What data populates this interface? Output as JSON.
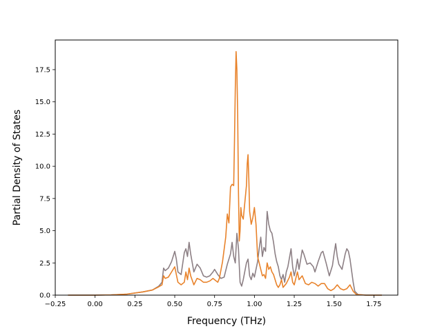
{
  "chart_data": {
    "type": "line",
    "title": "",
    "xlabel": "Frequency (THz)",
    "ylabel": "Partial Density of States",
    "xlim": [
      -0.25,
      1.9
    ],
    "ylim": [
      0,
      19.8
    ],
    "xticks": [
      -0.25,
      0.0,
      0.25,
      0.5,
      0.75,
      1.0,
      1.25,
      1.5,
      1.75
    ],
    "xtick_labels": [
      "−0.25",
      "0.00",
      "0.25",
      "0.50",
      "0.75",
      "1.00",
      "1.25",
      "1.50",
      "1.75"
    ],
    "yticks": [
      0.0,
      2.5,
      5.0,
      7.5,
      10.0,
      12.5,
      15.0,
      17.5
    ],
    "ytick_labels": [
      "0.0",
      "2.5",
      "5.0",
      "7.5",
      "10.0",
      "12.5",
      "15.0",
      "17.5"
    ],
    "grid": false,
    "legend": "none",
    "series": [
      {
        "color": "#8c7f84",
        "points": [
          [
            -0.17,
            0.0
          ],
          [
            0.0,
            0.0
          ],
          [
            0.1,
            0.02
          ],
          [
            0.2,
            0.08
          ],
          [
            0.3,
            0.25
          ],
          [
            0.36,
            0.4
          ],
          [
            0.4,
            0.7
          ],
          [
            0.42,
            1.0
          ],
          [
            0.43,
            2.1
          ],
          [
            0.44,
            1.9
          ],
          [
            0.46,
            2.1
          ],
          [
            0.48,
            2.6
          ],
          [
            0.5,
            3.4
          ],
          [
            0.51,
            2.8
          ],
          [
            0.52,
            1.8
          ],
          [
            0.54,
            1.6
          ],
          [
            0.56,
            3.3
          ],
          [
            0.57,
            3.6
          ],
          [
            0.58,
            3.0
          ],
          [
            0.59,
            4.1
          ],
          [
            0.6,
            3.2
          ],
          [
            0.62,
            1.8
          ],
          [
            0.64,
            2.4
          ],
          [
            0.66,
            2.1
          ],
          [
            0.68,
            1.5
          ],
          [
            0.7,
            1.4
          ],
          [
            0.72,
            1.5
          ],
          [
            0.74,
            1.8
          ],
          [
            0.75,
            2.0
          ],
          [
            0.77,
            1.6
          ],
          [
            0.79,
            1.3
          ],
          [
            0.81,
            1.4
          ],
          [
            0.83,
            2.4
          ],
          [
            0.85,
            3.2
          ],
          [
            0.86,
            4.1
          ],
          [
            0.87,
            3.0
          ],
          [
            0.88,
            2.5
          ],
          [
            0.89,
            4.8
          ],
          [
            0.9,
            3.6
          ],
          [
            0.91,
            1.0
          ],
          [
            0.92,
            0.7
          ],
          [
            0.93,
            1.2
          ],
          [
            0.95,
            2.5
          ],
          [
            0.96,
            2.8
          ],
          [
            0.97,
            1.5
          ],
          [
            0.98,
            1.2
          ],
          [
            0.99,
            1.7
          ],
          [
            1.0,
            1.4
          ],
          [
            1.02,
            2.6
          ],
          [
            1.03,
            3.6
          ],
          [
            1.04,
            4.5
          ],
          [
            1.05,
            3.0
          ],
          [
            1.06,
            3.7
          ],
          [
            1.07,
            3.4
          ],
          [
            1.08,
            6.5
          ],
          [
            1.09,
            5.5
          ],
          [
            1.1,
            5.0
          ],
          [
            1.11,
            4.8
          ],
          [
            1.12,
            4.1
          ],
          [
            1.13,
            3.2
          ],
          [
            1.14,
            2.6
          ],
          [
            1.15,
            2.2
          ],
          [
            1.16,
            1.5
          ],
          [
            1.17,
            1.2
          ],
          [
            1.18,
            1.6
          ],
          [
            1.19,
            1.0
          ],
          [
            1.2,
            1.8
          ],
          [
            1.21,
            2.2
          ],
          [
            1.23,
            3.6
          ],
          [
            1.24,
            2.2
          ],
          [
            1.25,
            1.5
          ],
          [
            1.26,
            2.0
          ],
          [
            1.27,
            2.8
          ],
          [
            1.28,
            2.0
          ],
          [
            1.3,
            3.5
          ],
          [
            1.31,
            3.2
          ],
          [
            1.33,
            2.4
          ],
          [
            1.35,
            2.5
          ],
          [
            1.37,
            2.2
          ],
          [
            1.38,
            1.8
          ],
          [
            1.4,
            2.6
          ],
          [
            1.42,
            3.3
          ],
          [
            1.43,
            3.4
          ],
          [
            1.45,
            2.5
          ],
          [
            1.47,
            1.5
          ],
          [
            1.49,
            2.3
          ],
          [
            1.5,
            3.2
          ],
          [
            1.51,
            4.0
          ],
          [
            1.52,
            3.0
          ],
          [
            1.53,
            2.4
          ],
          [
            1.55,
            2.0
          ],
          [
            1.57,
            3.2
          ],
          [
            1.58,
            3.6
          ],
          [
            1.59,
            3.4
          ],
          [
            1.6,
            2.8
          ],
          [
            1.62,
            1.0
          ],
          [
            1.63,
            0.3
          ],
          [
            1.65,
            0.05
          ],
          [
            1.7,
            0.0
          ],
          [
            1.8,
            0.0
          ]
        ]
      },
      {
        "color": "#e8822a",
        "points": [
          [
            -0.17,
            0.0
          ],
          [
            0.0,
            0.0
          ],
          [
            0.1,
            0.02
          ],
          [
            0.2,
            0.08
          ],
          [
            0.3,
            0.25
          ],
          [
            0.36,
            0.4
          ],
          [
            0.4,
            0.65
          ],
          [
            0.42,
            0.8
          ],
          [
            0.43,
            1.5
          ],
          [
            0.44,
            1.3
          ],
          [
            0.46,
            1.4
          ],
          [
            0.48,
            1.8
          ],
          [
            0.5,
            2.2
          ],
          [
            0.51,
            1.6
          ],
          [
            0.52,
            1.0
          ],
          [
            0.54,
            0.8
          ],
          [
            0.56,
            1.0
          ],
          [
            0.57,
            1.8
          ],
          [
            0.58,
            1.2
          ],
          [
            0.59,
            2.1
          ],
          [
            0.6,
            1.5
          ],
          [
            0.62,
            0.8
          ],
          [
            0.64,
            1.3
          ],
          [
            0.66,
            1.2
          ],
          [
            0.68,
            1.0
          ],
          [
            0.7,
            1.0
          ],
          [
            0.72,
            1.1
          ],
          [
            0.74,
            1.3
          ],
          [
            0.75,
            1.2
          ],
          [
            0.77,
            1.0
          ],
          [
            0.78,
            1.3
          ],
          [
            0.8,
            2.6
          ],
          [
            0.82,
            4.5
          ],
          [
            0.83,
            6.3
          ],
          [
            0.84,
            5.6
          ],
          [
            0.85,
            8.4
          ],
          [
            0.86,
            8.6
          ],
          [
            0.87,
            8.5
          ],
          [
            0.875,
            12.0
          ],
          [
            0.88,
            16.0
          ],
          [
            0.885,
            18.9
          ],
          [
            0.89,
            17.5
          ],
          [
            0.895,
            14.0
          ],
          [
            0.9,
            8.0
          ],
          [
            0.905,
            4.2
          ],
          [
            0.91,
            5.0
          ],
          [
            0.915,
            6.8
          ],
          [
            0.92,
            6.2
          ],
          [
            0.93,
            5.9
          ],
          [
            0.94,
            7.2
          ],
          [
            0.95,
            8.5
          ],
          [
            0.955,
            10.2
          ],
          [
            0.96,
            10.9
          ],
          [
            0.965,
            9.0
          ],
          [
            0.97,
            6.5
          ],
          [
            0.98,
            5.5
          ],
          [
            0.99,
            6.0
          ],
          [
            1.0,
            6.8
          ],
          [
            1.01,
            5.5
          ],
          [
            1.02,
            3.0
          ],
          [
            1.03,
            2.5
          ],
          [
            1.04,
            2.0
          ],
          [
            1.05,
            1.5
          ],
          [
            1.06,
            1.6
          ],
          [
            1.07,
            1.3
          ],
          [
            1.08,
            2.5
          ],
          [
            1.09,
            2.0
          ],
          [
            1.1,
            2.2
          ],
          [
            1.11,
            1.8
          ],
          [
            1.12,
            1.6
          ],
          [
            1.13,
            1.2
          ],
          [
            1.14,
            0.8
          ],
          [
            1.15,
            0.6
          ],
          [
            1.16,
            0.8
          ],
          [
            1.17,
            1.2
          ],
          [
            1.18,
            0.6
          ],
          [
            1.2,
            0.9
          ],
          [
            1.22,
            1.4
          ],
          [
            1.23,
            1.8
          ],
          [
            1.24,
            1.0
          ],
          [
            1.25,
            0.8
          ],
          [
            1.26,
            1.3
          ],
          [
            1.27,
            1.8
          ],
          [
            1.28,
            1.2
          ],
          [
            1.3,
            1.5
          ],
          [
            1.32,
            0.9
          ],
          [
            1.34,
            0.8
          ],
          [
            1.36,
            1.0
          ],
          [
            1.38,
            0.9
          ],
          [
            1.4,
            0.7
          ],
          [
            1.42,
            0.9
          ],
          [
            1.44,
            0.9
          ],
          [
            1.46,
            0.5
          ],
          [
            1.48,
            0.35
          ],
          [
            1.5,
            0.5
          ],
          [
            1.52,
            0.8
          ],
          [
            1.54,
            0.5
          ],
          [
            1.56,
            0.4
          ],
          [
            1.58,
            0.5
          ],
          [
            1.6,
            0.8
          ],
          [
            1.62,
            0.3
          ],
          [
            1.64,
            0.05
          ],
          [
            1.7,
            0.0
          ],
          [
            1.8,
            0.0
          ]
        ]
      }
    ]
  }
}
